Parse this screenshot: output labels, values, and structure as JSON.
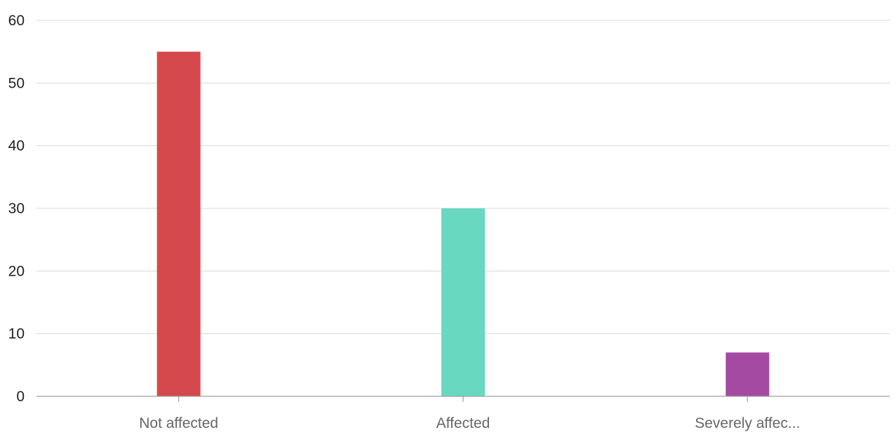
{
  "chart_data": {
    "type": "bar",
    "categories": [
      "Not affected",
      "Affected",
      "Severely affec..."
    ],
    "values": [
      55,
      30,
      7
    ],
    "colors": [
      "#d5494c",
      "#69d8c0",
      "#a54aa3"
    ],
    "ylim": [
      0,
      60
    ],
    "yticks": [
      "0",
      "10",
      "20",
      "30",
      "40",
      "50",
      "60"
    ],
    "grid": true,
    "title": "",
    "xlabel": "",
    "ylabel": ""
  }
}
